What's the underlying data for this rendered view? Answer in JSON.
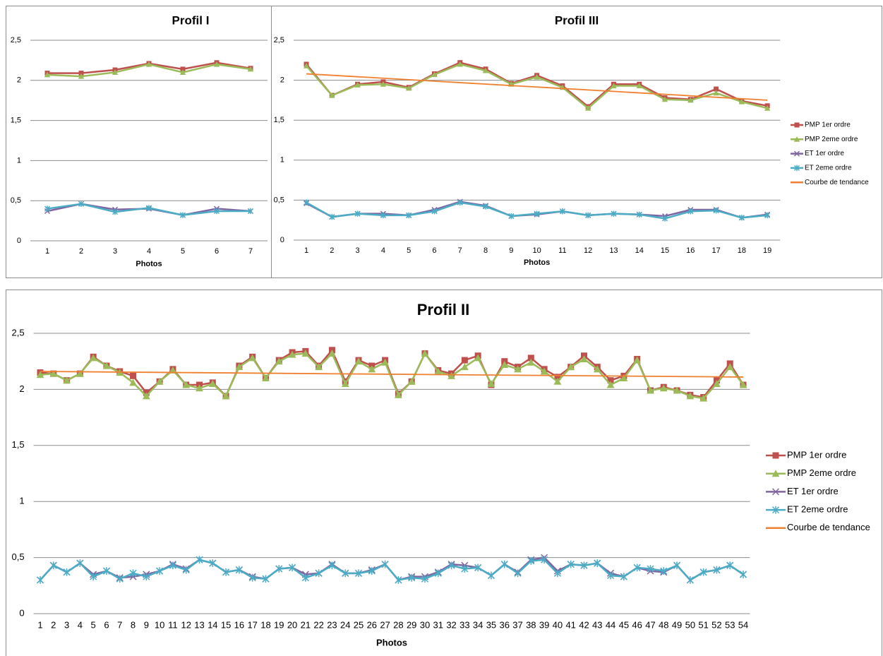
{
  "chart_data": [
    {
      "type": "line",
      "title": "Profil I",
      "x_label": "Photos",
      "x": [
        1,
        2,
        3,
        4,
        5,
        6,
        7
      ],
      "xlim": [
        0.5,
        7.5
      ],
      "ylim": [
        0,
        2.5
      ],
      "yticks": [
        0,
        {
          "value": 0.5,
          "label": "0,5"
        },
        1,
        {
          "value": 1.5,
          "label": "1,5"
        },
        2,
        {
          "value": 2.5,
          "label": "2,5"
        }
      ],
      "grid": true,
      "series": [
        {
          "name": "PMP 1er ordre",
          "color": "#c0504d",
          "marker": "square",
          "values": [
            2.09,
            2.09,
            2.13,
            2.21,
            2.14,
            2.22,
            2.15
          ]
        },
        {
          "name": "PMP 2eme ordre",
          "color": "#9bbb59",
          "marker": "triangle",
          "values": [
            2.07,
            2.05,
            2.1,
            2.2,
            2.1,
            2.2,
            2.14
          ]
        },
        {
          "name": "ET 1er ordre",
          "color": "#8064a2",
          "marker": "x",
          "values": [
            0.37,
            0.46,
            0.39,
            0.4,
            0.32,
            0.4,
            0.37
          ]
        },
        {
          "name": "ET  2eme ordre",
          "color": "#4bacc6",
          "marker": "star",
          "values": [
            0.4,
            0.46,
            0.36,
            0.41,
            0.32,
            0.37,
            0.37
          ]
        }
      ]
    },
    {
      "type": "line",
      "title": "Profil III",
      "x_label": "Photos",
      "x": [
        1,
        2,
        3,
        4,
        5,
        6,
        7,
        8,
        9,
        10,
        11,
        12,
        13,
        14,
        15,
        16,
        17,
        18,
        19
      ],
      "xlim": [
        0.5,
        19.5
      ],
      "ylim": [
        0,
        2.5
      ],
      "yticks": [
        0,
        {
          "value": 0.5,
          "label": "0,5"
        },
        1,
        {
          "value": 1.5,
          "label": "1,5"
        },
        2,
        {
          "value": 2.5,
          "label": "2,5"
        }
      ],
      "grid": true,
      "legend": "right",
      "series": [
        {
          "name": "PMP 1er ordre",
          "color": "#c0504d",
          "marker": "square",
          "values": [
            2.2,
            1.81,
            1.95,
            1.98,
            1.91,
            2.08,
            2.22,
            2.14,
            1.96,
            2.06,
            1.93,
            1.67,
            1.95,
            1.95,
            1.78,
            1.76,
            1.89,
            1.74,
            1.68
          ]
        },
        {
          "name": "PMP 2eme ordre",
          "color": "#9bbb59",
          "marker": "triangle",
          "values": [
            2.18,
            1.81,
            1.94,
            1.95,
            1.9,
            2.07,
            2.2,
            2.12,
            1.95,
            2.04,
            1.91,
            1.65,
            1.93,
            1.93,
            1.76,
            1.75,
            1.84,
            1.73,
            1.65
          ]
        },
        {
          "name": "ET 1er ordre",
          "color": "#8064a2",
          "marker": "x",
          "values": [
            0.46,
            0.29,
            0.33,
            0.33,
            0.31,
            0.38,
            0.48,
            0.43,
            0.3,
            0.32,
            0.36,
            0.31,
            0.33,
            0.32,
            0.3,
            0.38,
            0.38,
            0.28,
            0.32
          ]
        },
        {
          "name": "ET  2eme ordre",
          "color": "#4bacc6",
          "marker": "star",
          "values": [
            0.47,
            0.29,
            0.33,
            0.31,
            0.31,
            0.36,
            0.47,
            0.42,
            0.3,
            0.33,
            0.36,
            0.31,
            0.33,
            0.32,
            0.27,
            0.36,
            0.37,
            0.28,
            0.31
          ]
        },
        {
          "name": "Courbe de tendance",
          "color": "#f08030",
          "marker": "none",
          "x": [
            1,
            19
          ],
          "values": [
            2.08,
            1.75
          ]
        }
      ]
    },
    {
      "type": "line",
      "title": "Profil II",
      "x_label": "Photos",
      "x": [
        1,
        2,
        3,
        4,
        5,
        6,
        7,
        8,
        9,
        10,
        11,
        12,
        13,
        14,
        15,
        16,
        17,
        18,
        19,
        20,
        21,
        22,
        23,
        24,
        25,
        26,
        27,
        28,
        29,
        30,
        31,
        32,
        33,
        34,
        35,
        36,
        37,
        38,
        39,
        40,
        41,
        42,
        43,
        44,
        45,
        46,
        47,
        48,
        49,
        50,
        51,
        52,
        53,
        54
      ],
      "xlim": [
        0.5,
        54.5
      ],
      "ylim": [
        0,
        2.5
      ],
      "yticks": [
        0,
        {
          "value": 0.5,
          "label": "0,5"
        },
        1,
        {
          "value": 1.5,
          "label": "1,5"
        },
        2,
        {
          "value": 2.5,
          "label": "2,5"
        }
      ],
      "grid": true,
      "legend": "right",
      "series": [
        {
          "name": "PMP 1er ordre",
          "color": "#c0504d",
          "marker": "square",
          "values": [
            2.15,
            2.14,
            2.08,
            2.14,
            2.29,
            2.21,
            2.16,
            2.12,
            1.97,
            2.07,
            2.18,
            2.04,
            2.04,
            2.06,
            1.94,
            2.21,
            2.29,
            2.1,
            2.26,
            2.33,
            2.34,
            2.21,
            2.35,
            2.07,
            2.26,
            2.21,
            2.26,
            1.96,
            2.07,
            2.32,
            2.17,
            2.14,
            2.26,
            2.3,
            2.04,
            2.25,
            2.2,
            2.28,
            2.18,
            2.11,
            2.2,
            2.3,
            2.2,
            2.08,
            2.12,
            2.27,
            1.99,
            2.02,
            1.99,
            1.95,
            1.93,
            2.08,
            2.23,
            2.04
          ]
        },
        {
          "name": "PMP 2eme ordre",
          "color": "#9bbb59",
          "marker": "triangle",
          "values": [
            2.13,
            2.14,
            2.08,
            2.14,
            2.28,
            2.21,
            2.15,
            2.06,
            1.94,
            2.07,
            2.17,
            2.04,
            2.01,
            2.05,
            1.94,
            2.2,
            2.28,
            2.1,
            2.25,
            2.31,
            2.32,
            2.2,
            2.32,
            2.05,
            2.25,
            2.18,
            2.24,
            1.95,
            2.07,
            2.32,
            2.16,
            2.12,
            2.2,
            2.28,
            2.05,
            2.22,
            2.18,
            2.24,
            2.16,
            2.07,
            2.2,
            2.27,
            2.18,
            2.04,
            2.1,
            2.26,
            1.99,
            2.01,
            1.99,
            1.94,
            1.92,
            2.05,
            2.2,
            2.04
          ]
        },
        {
          "name": "ET 1er ordre",
          "color": "#8064a2",
          "marker": "x",
          "values": [
            0.3,
            0.43,
            0.37,
            0.45,
            0.35,
            0.38,
            0.32,
            0.33,
            0.35,
            0.38,
            0.44,
            0.4,
            0.48,
            0.45,
            0.37,
            0.39,
            0.33,
            0.31,
            0.4,
            0.41,
            0.35,
            0.36,
            0.44,
            0.36,
            0.36,
            0.39,
            0.44,
            0.3,
            0.33,
            0.33,
            0.37,
            0.44,
            0.43,
            0.41,
            0.34,
            0.44,
            0.37,
            0.48,
            0.5,
            0.38,
            0.44,
            0.43,
            0.45,
            0.36,
            0.33,
            0.41,
            0.38,
            0.37,
            0.43,
            0.3,
            0.37,
            0.39,
            0.43,
            0.35
          ]
        },
        {
          "name": "ET  2eme ordre",
          "color": "#4bacc6",
          "marker": "star",
          "values": [
            0.3,
            0.43,
            0.37,
            0.45,
            0.33,
            0.38,
            0.31,
            0.36,
            0.33,
            0.38,
            0.43,
            0.39,
            0.48,
            0.45,
            0.37,
            0.39,
            0.32,
            0.31,
            0.4,
            0.41,
            0.32,
            0.36,
            0.43,
            0.36,
            0.36,
            0.38,
            0.44,
            0.3,
            0.32,
            0.31,
            0.36,
            0.43,
            0.4,
            0.41,
            0.34,
            0.44,
            0.36,
            0.47,
            0.48,
            0.36,
            0.44,
            0.43,
            0.45,
            0.34,
            0.33,
            0.41,
            0.4,
            0.38,
            0.43,
            0.3,
            0.37,
            0.39,
            0.43,
            0.35
          ]
        },
        {
          "name": "Courbe de tendance",
          "color": "#f08030",
          "marker": "none",
          "x": [
            1,
            54
          ],
          "values": [
            2.16,
            2.11
          ]
        }
      ]
    }
  ]
}
